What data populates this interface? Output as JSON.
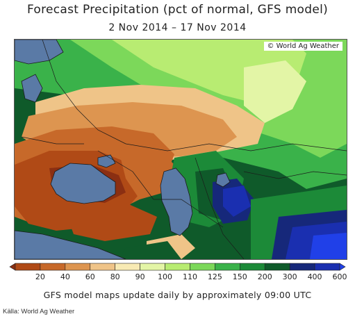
{
  "title": "Forecast Precipitation (pct of normal, GFS model)",
  "subtitle": "2 Nov 2014 – 17 Nov 2014",
  "credit": "© World Ag Weather",
  "note": "GFS model maps update daily by approximately 09:00 UTC",
  "source": "Källa: World Ag Weather",
  "legend": {
    "ticks": [
      "20",
      "40",
      "60",
      "80",
      "90",
      "100",
      "110",
      "125",
      "150",
      "200",
      "300",
      "400",
      "600"
    ],
    "colors": [
      "#8b2f12",
      "#b04a16",
      "#c7692a",
      "#dd9550",
      "#efc488",
      "#f8eab4",
      "#e3f5a6",
      "#b8ec72",
      "#7cd85a",
      "#3ab24a",
      "#1c8a38",
      "#0f5a2a",
      "#16287a",
      "#1a2fb0",
      "#2040e8"
    ]
  },
  "map": {
    "water_color": "#5a7aa6",
    "palette": {
      "dark_brown": "#8b2f12",
      "brown": "#b04a16",
      "orange": "#c7692a",
      "tan": "#dd9550",
      "light_tan": "#efc488",
      "cream": "#f8eab4",
      "pale_green": "#e3f5a6",
      "light_green": "#b8ec72",
      "green": "#7cd85a",
      "mid_green": "#3ab24a",
      "dark_green": "#1c8a38",
      "forest": "#0f5a2a",
      "navy": "#16287a",
      "blue": "#1a2fb0",
      "bright_blue": "#2040e8"
    }
  }
}
